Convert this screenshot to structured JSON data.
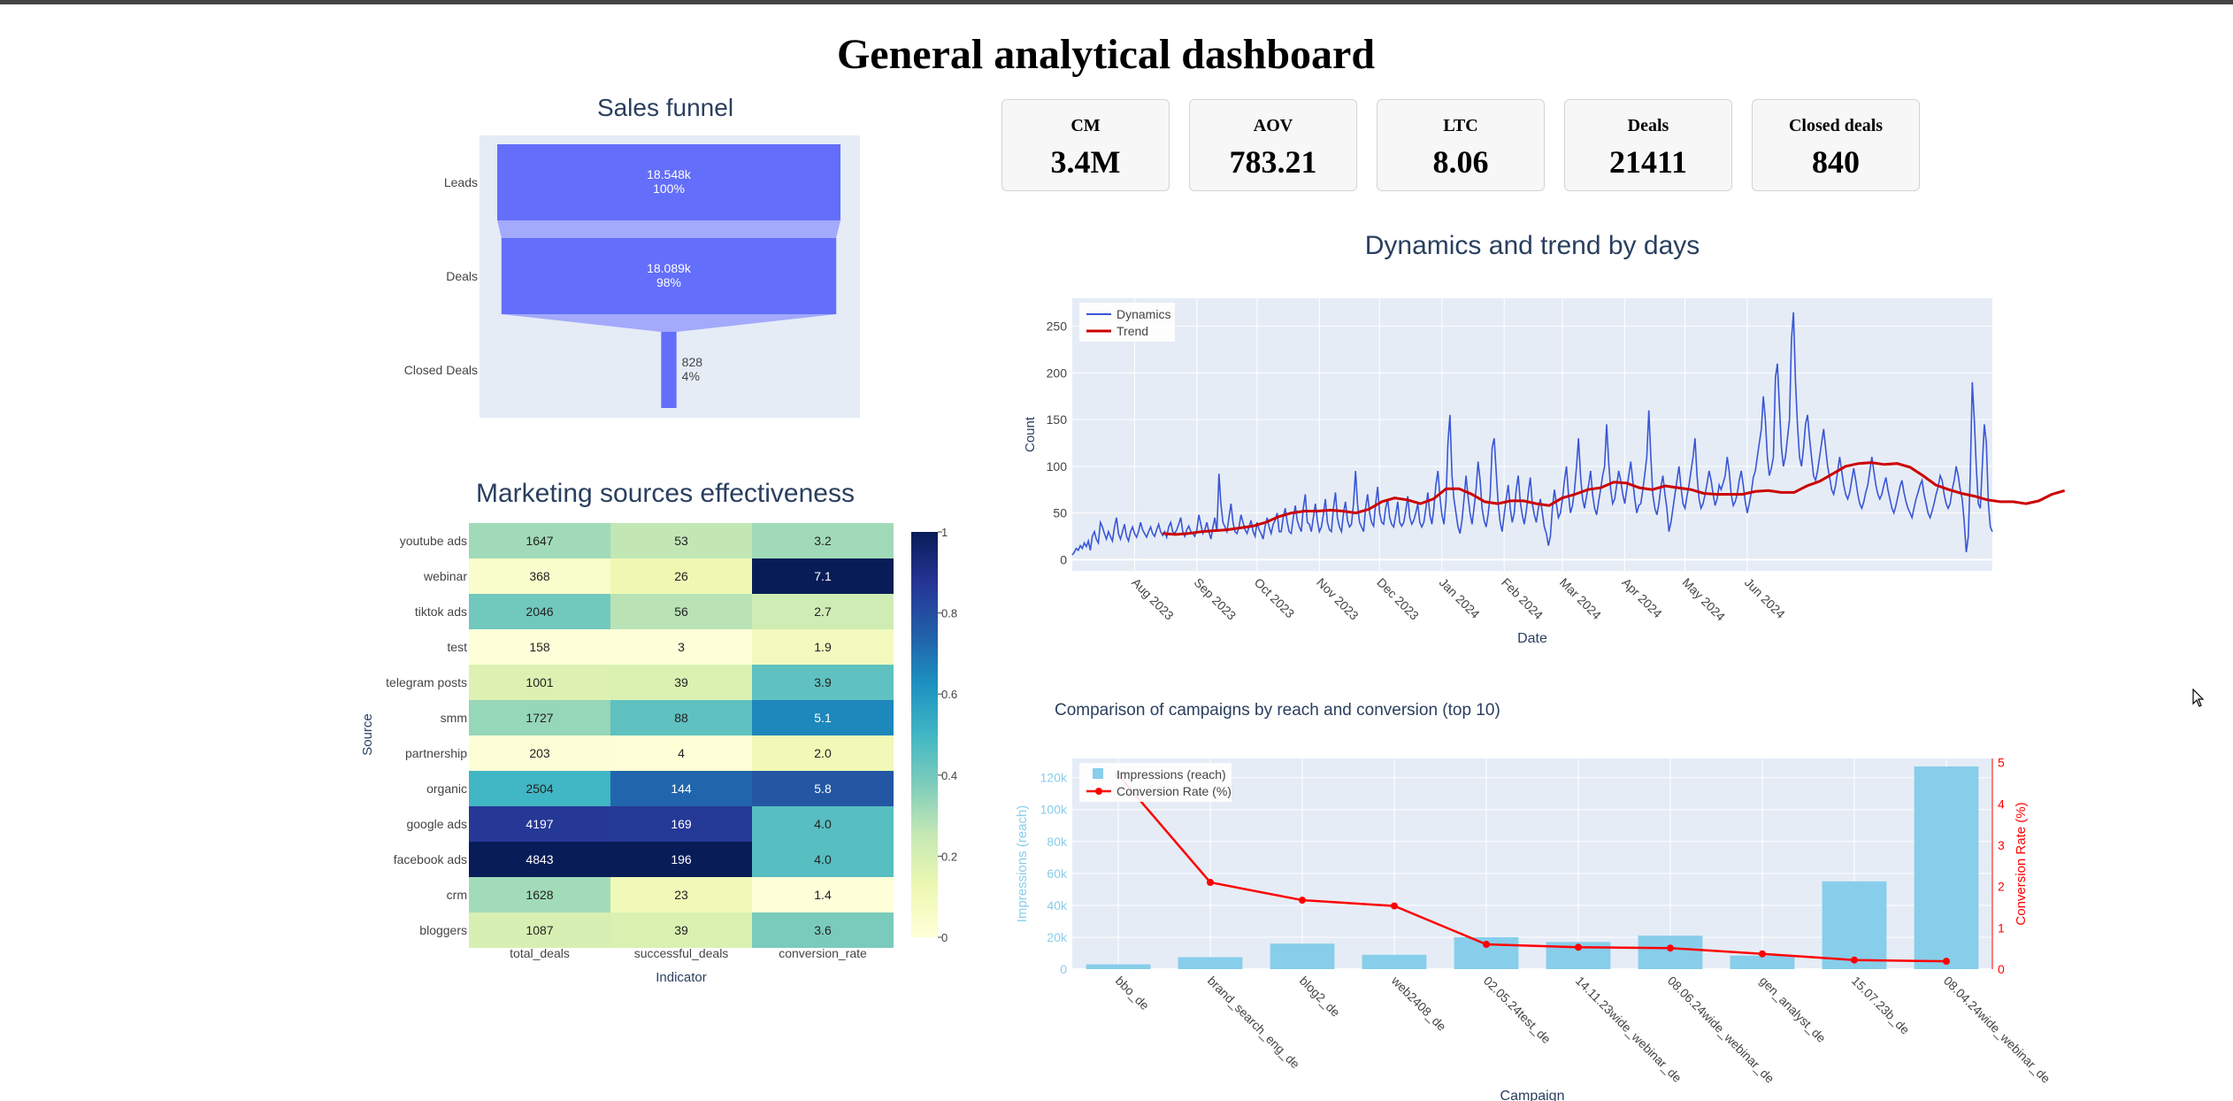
{
  "page": {
    "title": "General analytical dashboard"
  },
  "kpis": [
    {
      "label": "CM",
      "value": "3.4M"
    },
    {
      "label": "AOV",
      "value": "783.21"
    },
    {
      "label": "LTC",
      "value": "8.06"
    },
    {
      "label": "Deals",
      "value": "21411"
    },
    {
      "label": "Closed deals",
      "value": "840"
    }
  ],
  "colors": {
    "funnel": "#636efa",
    "funnel_connector": "#a3a9fb",
    "plot_bg": "#e5ecf6",
    "dynamics": "#3a56d4",
    "trend": "#cc0000",
    "bar": "#87ceeb",
    "line": "#ff0000",
    "title": "#2a3f5f",
    "axis_text": "#444444"
  },
  "chart_data": [
    {
      "type": "funnel",
      "title": "Sales funnel",
      "stages": [
        "Leads",
        "Deals",
        "Closed Deals"
      ],
      "values": [
        18548,
        18089,
        828
      ],
      "text_values": [
        "18.548k",
        "18.089k",
        "828"
      ],
      "percent_labels": [
        "100%",
        "98%",
        "4%"
      ]
    },
    {
      "type": "heatmap",
      "title": "Marketing sources effectiveness",
      "xlabel": "Indicator",
      "ylabel": "Source",
      "columns": [
        "total_deals",
        "successful_deals",
        "conversion_rate"
      ],
      "rows": [
        "youtube ads",
        "webinar",
        "tiktok ads",
        "test",
        "telegram posts",
        "smm",
        "partnership",
        "organic",
        "google ads",
        "facebook ads",
        "crm",
        "bloggers"
      ],
      "values": [
        [
          "1647",
          "53",
          "3.2"
        ],
        [
          "368",
          "26",
          "7.1"
        ],
        [
          "2046",
          "56",
          "2.7"
        ],
        [
          "158",
          "3",
          "1.9"
        ],
        [
          "1001",
          "39",
          "3.9"
        ],
        [
          "1727",
          "88",
          "5.1"
        ],
        [
          "203",
          "4",
          "2.0"
        ],
        [
          "2504",
          "144",
          "5.8"
        ],
        [
          "4197",
          "169",
          "4.0"
        ],
        [
          "4843",
          "196",
          "4.0"
        ],
        [
          "1628",
          "23",
          "1.4"
        ],
        [
          "1087",
          "39",
          "3.6"
        ]
      ],
      "colorbar_ticks": [
        "0",
        "0.2",
        "0.4",
        "0.6",
        "0.8",
        "1"
      ],
      "colorscale": "YlGnBu"
    },
    {
      "type": "line",
      "title": "Dynamics and trend by days",
      "xlabel": "Date",
      "ylabel": "Count",
      "x_start": "2023-07-01",
      "x_ticks": [
        "Aug 2023",
        "Sep 2023",
        "Oct 2023",
        "Nov 2023",
        "Dec 2023",
        "Jan 2024",
        "Feb 2024",
        "Mar 2024",
        "Apr 2024",
        "May 2024",
        "Jun 2024"
      ],
      "y_ticks": [
        "0",
        "50",
        "100",
        "150",
        "200",
        "250"
      ],
      "ylim": [
        -12,
        280
      ],
      "legend_position": "top-left",
      "series": [
        {
          "name": "Dynamics",
          "values": [
            5,
            8,
            12,
            10,
            15,
            12,
            18,
            14,
            20,
            10,
            25,
            30,
            22,
            18,
            40,
            35,
            28,
            22,
            30,
            25,
            20,
            35,
            45,
            28,
            22,
            30,
            38,
            25,
            20,
            30,
            35,
            28,
            24,
            30,
            40,
            32,
            28,
            24,
            30,
            35,
            28,
            25,
            32,
            38,
            30,
            26,
            30,
            24,
            35,
            40,
            30,
            28,
            32,
            38,
            45,
            30,
            25,
            32,
            36,
            30,
            28,
            25,
            32,
            48,
            38,
            28,
            32,
            40,
            30,
            22,
            35,
            45,
            30,
            92,
            60,
            40,
            35,
            30,
            45,
            60,
            40,
            30,
            28,
            35,
            48,
            40,
            32,
            28,
            35,
            42,
            30,
            25,
            40,
            32,
            28,
            22,
            36,
            45,
            35,
            28,
            38,
            42,
            50,
            30,
            30,
            45,
            55,
            40,
            30,
            28,
            45,
            58,
            42,
            35,
            30,
            55,
            70,
            40,
            38,
            30,
            45,
            60,
            42,
            30,
            35,
            48,
            65,
            40,
            32,
            30,
            55,
            72,
            45,
            35,
            30,
            50,
            62,
            42,
            35,
            38,
            60,
            95,
            60,
            40,
            35,
            30,
            55,
            70,
            50,
            40,
            36,
            60,
            78,
            50,
            40,
            38,
            55,
            65,
            45,
            38,
            35,
            48,
            62,
            40,
            36,
            40,
            52,
            68,
            45,
            38,
            42,
            50,
            60,
            40,
            35,
            40,
            55,
            72,
            48,
            38,
            55,
            80,
            95,
            68,
            48,
            38,
            62,
            125,
            155,
            90,
            65,
            50,
            35,
            28,
            42,
            65,
            90,
            68,
            50,
            38,
            55,
            75,
            105,
            85,
            55,
            42,
            35,
            48,
            68,
            120,
            130,
            95,
            60,
            40,
            30,
            48,
            65,
            80,
            55,
            40,
            50,
            75,
            90,
            62,
            48,
            38,
            52,
            72,
            88,
            60,
            48,
            40,
            55,
            65,
            50,
            35,
            28,
            15,
            25,
            55,
            75,
            60,
            45,
            50,
            65,
            85,
            100,
            70,
            50,
            58,
            75,
            100,
            130,
            90,
            65,
            55,
            68,
            80,
            95,
            70,
            55,
            48,
            62,
            75,
            90,
            100,
            145,
            105,
            75,
            60,
            65,
            80,
            95,
            85,
            70,
            60,
            75,
            90,
            105,
            85,
            65,
            50,
            58,
            60,
            75,
            92,
            110,
            160,
            110,
            70,
            55,
            48,
            60,
            78,
            90,
            70,
            55,
            30,
            40,
            55,
            70,
            85,
            100,
            78,
            60,
            55,
            68,
            80,
            95,
            110,
            130,
            90,
            65,
            55,
            60,
            70,
            82,
            95,
            85,
            70,
            58,
            65,
            80,
            75,
            82,
            90,
            110,
            95,
            70,
            58,
            62,
            70,
            85,
            95,
            80,
            62,
            50,
            60,
            72,
            88,
            95,
            110,
            125,
            140,
            175,
            150,
            110,
            90,
            98,
            110,
            195,
            210,
            165,
            120,
            100,
            110,
            130,
            150,
            235,
            265,
            190,
            145,
            110,
            100,
            120,
            145,
            155,
            130,
            110,
            90,
            85,
            95,
            110,
            125,
            140,
            120,
            100,
            88,
            75,
            70,
            80,
            95,
            110,
            95,
            80,
            70,
            65,
            72,
            85,
            98,
            85,
            70,
            60,
            55,
            62,
            72,
            80,
            95,
            110,
            95,
            80,
            70,
            65,
            70,
            80,
            88,
            75,
            65,
            55,
            50,
            58,
            68,
            78,
            85,
            72,
            62,
            55,
            50,
            45,
            55,
            65,
            72,
            80,
            85,
            70,
            60,
            50,
            45,
            52,
            60,
            70,
            78,
            90,
            85,
            70,
            60,
            55,
            60,
            75,
            85,
            100,
            90,
            75,
            65,
            40,
            8,
            25,
            90,
            190,
            150,
            100,
            60,
            55,
            100,
            145,
            125,
            60,
            35,
            30
          ]
        },
        {
          "name": "Trend",
          "values": [
            28,
            27,
            28,
            30,
            31,
            32,
            34,
            36,
            40,
            46,
            50,
            52,
            52,
            53,
            52,
            50,
            54,
            62,
            66,
            64,
            60,
            65,
            76,
            76,
            70,
            62,
            60,
            63,
            63,
            60,
            58,
            66,
            70,
            75,
            77,
            83,
            82,
            77,
            75,
            79,
            77,
            75,
            71,
            70,
            70,
            70,
            73,
            74,
            72,
            72,
            79,
            84,
            92,
            100,
            103,
            104,
            102,
            103,
            99,
            90,
            80,
            75,
            71,
            68,
            64,
            62,
            62,
            60,
            63,
            70,
            74
          ]
        }
      ]
    },
    {
      "type": "bar",
      "title": "Comparison of campaigns by reach and conversion (top 10)",
      "xlabel": "Campaign",
      "ylabel": "Impressions (reach)",
      "y2label": "Conversion Rate (%)",
      "categories": [
        "bbo_de",
        "brand_search_eng_de",
        "blog2_de",
        "web2408_de",
        "02.05.24test_de",
        "14.11.23wide_webinar_de",
        "08.06.24wide_webinar_de",
        "gen_analyst_de",
        "15.07.23b_de",
        "08.04.24wide_webinar_de"
      ],
      "y_ticks": [
        "0",
        "20k",
        "40k",
        "60k",
        "80k",
        "100k",
        "120k"
      ],
      "y2_ticks": [
        "0",
        "1",
        "2",
        "3",
        "4",
        "5"
      ],
      "ylim": [
        0,
        132000
      ],
      "y2lim": [
        0,
        5.1
      ],
      "legend_position": "top-left",
      "series": [
        {
          "name": "Impressions (reach)",
          "values": [
            3000,
            7500,
            16000,
            9000,
            20000,
            17000,
            21000,
            8500,
            55000,
            127000
          ]
        },
        {
          "name": "Conversion Rate (%)",
          "values": [
            4.7,
            2.1,
            1.67,
            1.53,
            0.6,
            0.53,
            0.51,
            0.37,
            0.22,
            0.19
          ]
        }
      ]
    }
  ]
}
